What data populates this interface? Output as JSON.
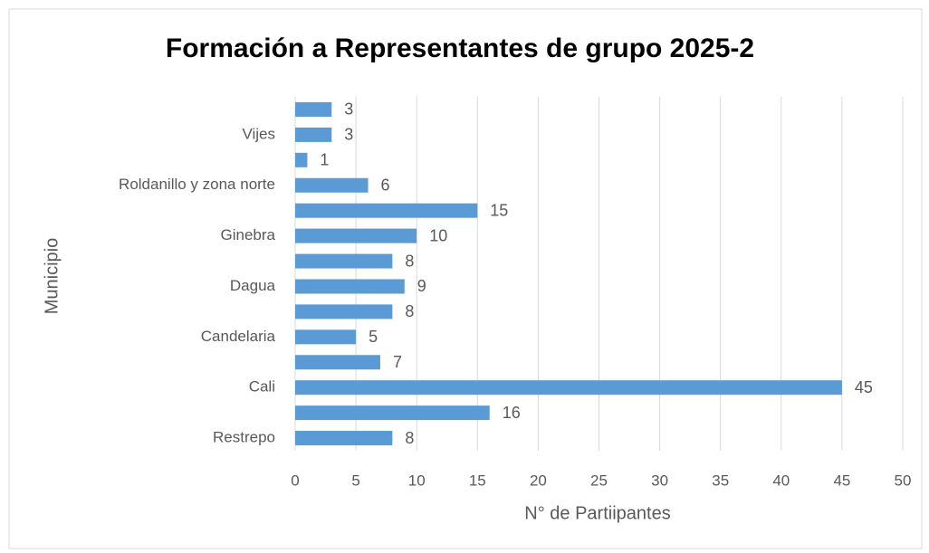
{
  "chart_data": {
    "type": "bar",
    "orientation": "horizontal",
    "title": "Formación a Representantes de grupo 2025-2",
    "x_label": "N° de Partiipantes",
    "y_label": "Municipio",
    "categories": [
      "Restrepo",
      null,
      "Cali",
      null,
      "Candelaria",
      null,
      "Dagua",
      null,
      "Ginebra",
      null,
      "Roldanillo y zona norte",
      null,
      "Vijes",
      null
    ],
    "values": [
      8,
      16,
      45,
      7,
      5,
      8,
      9,
      8,
      10,
      15,
      6,
      1,
      3,
      3
    ],
    "color": "#5b9bd5",
    "xlim": [
      0,
      50
    ],
    "xticks": [
      0,
      5,
      10,
      15,
      20,
      25,
      30,
      35,
      40,
      45,
      50
    ],
    "grid": true
  }
}
